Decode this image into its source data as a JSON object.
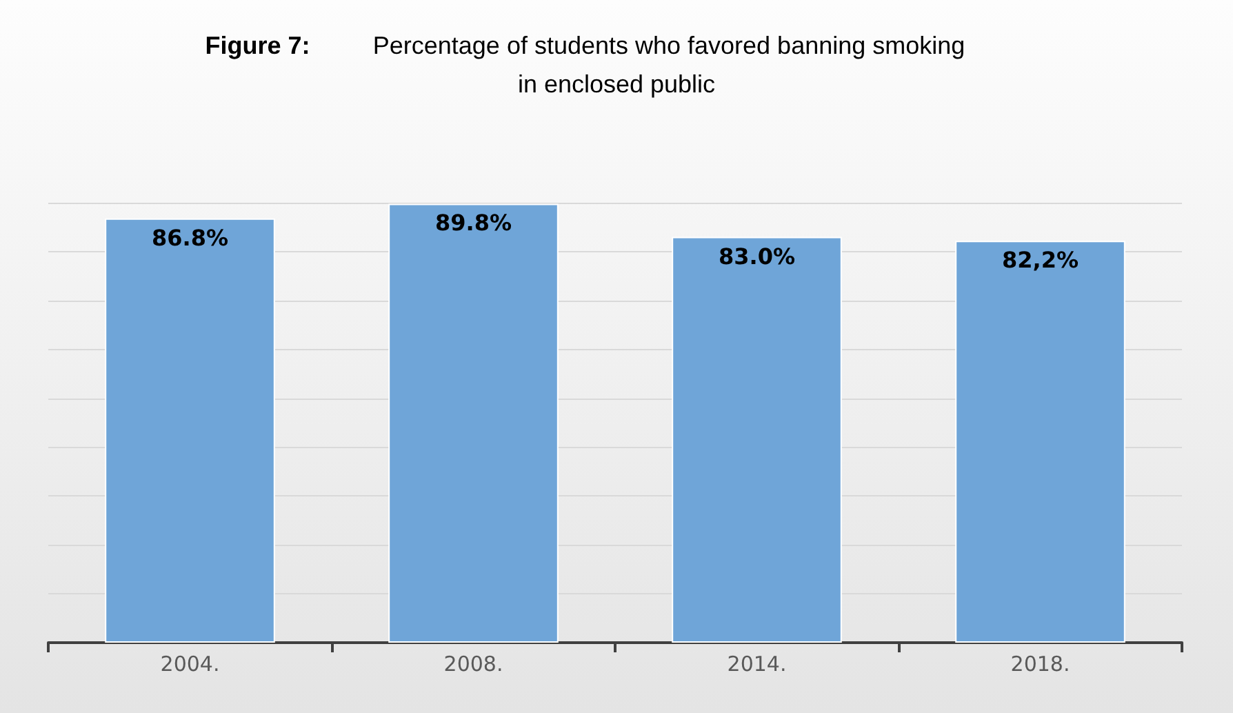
{
  "chart_data": {
    "type": "bar",
    "title": "Figure 7: Percentage of students who favored banning smoking in enclosed public",
    "categories": [
      "2004.",
      "2008.",
      "2014.",
      "2018."
    ],
    "values": [
      86.8,
      89.8,
      83.0,
      82.2
    ],
    "value_labels": [
      "86.8%",
      "89.8%",
      "83.0%",
      "82,2%"
    ],
    "color": "#6fa5d8",
    "ylim": [
      0,
      90
    ],
    "yticks": [
      {
        "value": 0,
        "label": null
      },
      {
        "value": 10,
        "label": null
      },
      {
        "value": 20,
        "label": null
      },
      {
        "value": 30,
        "label": null
      },
      {
        "value": 40,
        "label": null
      },
      {
        "value": 50,
        "label": null
      },
      {
        "value": 60,
        "label": null
      },
      {
        "value": 70,
        "label": null
      },
      {
        "value": 80,
        "label": null
      },
      {
        "value": 90,
        "label": null
      }
    ],
    "grid": true
  }
}
